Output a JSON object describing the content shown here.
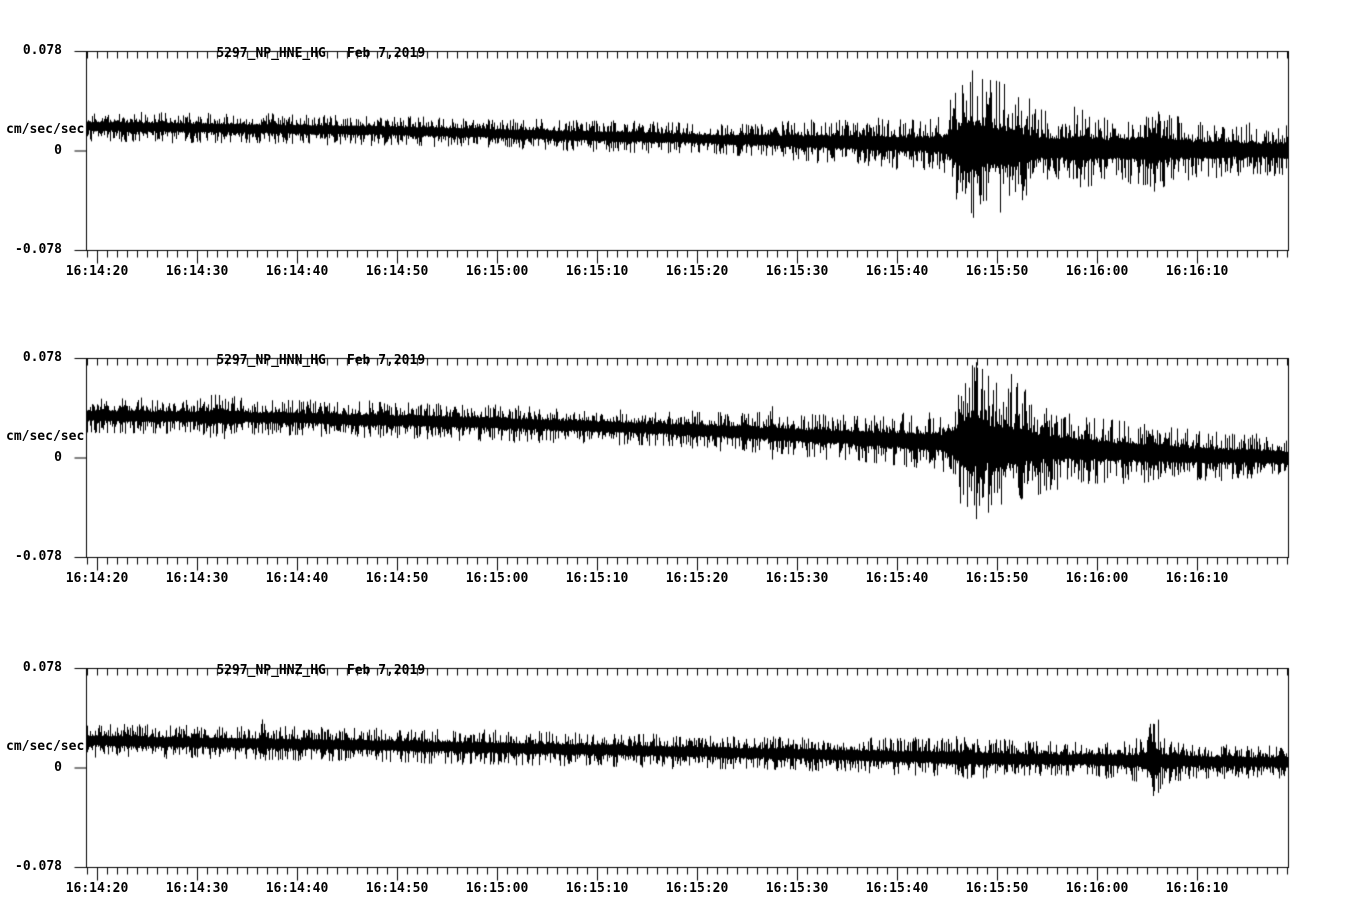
{
  "page": {
    "background_color": "#ffffff",
    "trace_color": "#000000",
    "text_color": "#000000"
  },
  "chart_data": {
    "type": "line",
    "subtype": "seismogram-strip-chart",
    "date_label": "Feb 7,2019",
    "x_axis": {
      "start_time": "16:14:19",
      "end_time": "16:16:19",
      "tick_labels": [
        "16:14:20",
        "16:14:30",
        "16:14:40",
        "16:14:50",
        "16:15:00",
        "16:15:10",
        "16:15:20",
        "16:15:30",
        "16:15:40",
        "16:15:50",
        "16:16:00",
        "16:16:10"
      ],
      "major_tick_interval_sec": 10,
      "minor_tick_interval_sec": 1
    },
    "y_axis": {
      "label": "cm/sec/sec",
      "tick_labels": [
        "0.078",
        "0",
        "-0.078"
      ],
      "ylim": [
        -0.078,
        0.078
      ]
    },
    "panels": [
      {
        "title": "5297_NP_HNE_HG",
        "date": "Feb 7,2019",
        "seed": 101,
        "baseline": [
          [
            0,
            0.019
          ],
          [
            30,
            0.0156
          ],
          [
            60,
            0.0094
          ],
          [
            85,
            0.0047
          ],
          [
            95,
            0.002
          ],
          [
            120.2,
            0.0
          ]
        ],
        "envelope": [
          [
            0,
            0.0125
          ],
          [
            40,
            0.0117
          ],
          [
            55,
            0.0133
          ],
          [
            62,
            0.0117
          ],
          [
            70,
            0.0156
          ],
          [
            80,
            0.0195
          ],
          [
            85.5,
            0.0219
          ],
          [
            87.5,
            0.055
          ],
          [
            88.2,
            0.066
          ],
          [
            90,
            0.055
          ],
          [
            92.5,
            0.05
          ],
          [
            95,
            0.031
          ],
          [
            97,
            0.027
          ],
          [
            99,
            0.035
          ],
          [
            102,
            0.025
          ],
          [
            105.9,
            0.03
          ],
          [
            106.6,
            0.043
          ],
          [
            108,
            0.027
          ],
          [
            112,
            0.022
          ],
          [
            120.2,
            0.02
          ]
        ]
      },
      {
        "title": "5297_NP_HNN_HG",
        "date": "Feb 7,2019",
        "seed": 202,
        "baseline": [
          [
            0,
            0.0328
          ],
          [
            20,
            0.0312
          ],
          [
            40,
            0.0273
          ],
          [
            60,
            0.0219
          ],
          [
            80,
            0.0141
          ],
          [
            95,
            0.008
          ],
          [
            110,
            0.002
          ],
          [
            120.2,
            0.0
          ]
        ],
        "envelope": [
          [
            0,
            0.0141
          ],
          [
            11,
            0.0141
          ],
          [
            12.5,
            0.0187
          ],
          [
            14,
            0.0187
          ],
          [
            16,
            0.0141
          ],
          [
            35,
            0.0148
          ],
          [
            55,
            0.0141
          ],
          [
            65,
            0.0164
          ],
          [
            68.2,
            0.016
          ],
          [
            68.6,
            0.025
          ],
          [
            69,
            0.016
          ],
          [
            80,
            0.0203
          ],
          [
            85.5,
            0.0234
          ],
          [
            87.3,
            0.05
          ],
          [
            88.2,
            0.074
          ],
          [
            90,
            0.058
          ],
          [
            92.5,
            0.055
          ],
          [
            95,
            0.038
          ],
          [
            98,
            0.03
          ],
          [
            102,
            0.026
          ],
          [
            107,
            0.024
          ],
          [
            112,
            0.02
          ],
          [
            120.2,
            0.0165
          ]
        ]
      },
      {
        "title": "5297_NP_HNZ_HG",
        "date": "Feb 7,2019",
        "seed": 303,
        "baseline": [
          [
            0,
            0.0211
          ],
          [
            30,
            0.0172
          ],
          [
            60,
            0.0125
          ],
          [
            90,
            0.007
          ],
          [
            120.2,
            0.004
          ]
        ],
        "envelope": [
          [
            0,
            0.0133
          ],
          [
            17.2,
            0.0133
          ],
          [
            17.6,
            0.03
          ],
          [
            18,
            0.0133
          ],
          [
            45,
            0.0141
          ],
          [
            70,
            0.0133
          ],
          [
            85,
            0.0156
          ],
          [
            88,
            0.0172
          ],
          [
            92,
            0.0148
          ],
          [
            100,
            0.0141
          ],
          [
            105.8,
            0.018
          ],
          [
            106.6,
            0.05
          ],
          [
            107.4,
            0.02
          ],
          [
            110,
            0.0148
          ],
          [
            120.2,
            0.0133
          ]
        ]
      }
    ]
  }
}
